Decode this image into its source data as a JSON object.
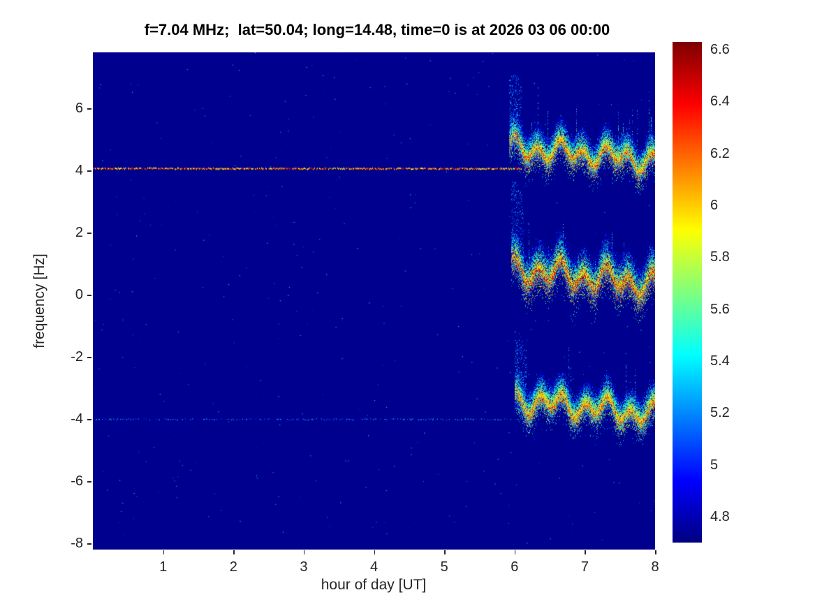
{
  "figure": {
    "title": "f=7.04 MHz;  lat=50.04; long=14.48, time=0 is at 2026 03 06 00:00"
  },
  "chart_data": {
    "type": "heatmap",
    "title": "f=7.04 MHz;  lat=50.04; long=14.48, time=0 is at 2026 03 06 00:00",
    "xlabel": "hour of day [UT]",
    "ylabel": "frequency [Hz]",
    "xlim": [
      0,
      8
    ],
    "ylim": [
      -8.2,
      7.8
    ],
    "xticks": [
      1,
      2,
      3,
      4,
      5,
      6,
      7,
      8
    ],
    "yticks": [
      -8,
      -6,
      -4,
      -2,
      0,
      2,
      4,
      6
    ],
    "grid": false,
    "colorbar": {
      "colormap": "jet",
      "position": "right",
      "min": 4.7,
      "max": 6.63,
      "ticks": [
        4.8,
        5,
        5.2,
        5.4,
        5.6,
        5.8,
        6,
        6.2,
        6.4,
        6.6
      ]
    },
    "background_value": 4.73,
    "speckle": {
      "density": 0.0009,
      "vmin": 4.78,
      "vmax": 5.45
    },
    "features": [
      {
        "kind": "hline",
        "y": 4.08,
        "x_start": 0,
        "x_end": 6.1,
        "value": 6.15,
        "value_jitter": 0.45,
        "gap_prob": 0.1,
        "thickness_px": 2
      },
      {
        "kind": "hline",
        "y": -4.0,
        "x_start": 0,
        "x_end": 6.05,
        "value": 5.15,
        "value_jitter": 0.35,
        "gap_prob": 0.45,
        "thickness_px": 1
      },
      {
        "kind": "noisy_band",
        "center": 4.7,
        "x_start": 5.92,
        "x_end": 8.0,
        "peak_value": 6.55,
        "core_sigma": 0.1,
        "mid_sigma": 0.3,
        "up_spread": 0.85,
        "down_spread": 0.4,
        "drift": -0.2,
        "wiggle_amp": 0.24,
        "wiggle_freq": 3.1,
        "wiggle_freq2": 1.4,
        "phase": 0.0
      },
      {
        "kind": "noisy_band",
        "center": 0.8,
        "x_start": 5.95,
        "x_end": 8.0,
        "peak_value": 6.6,
        "core_sigma": 0.14,
        "mid_sigma": 0.36,
        "up_spread": 1.05,
        "down_spread": 0.55,
        "drift": -0.25,
        "wiggle_amp": 0.28,
        "wiggle_freq": 3.1,
        "wiggle_freq2": 1.4,
        "phase": 0.4
      },
      {
        "kind": "noisy_band",
        "center": -3.4,
        "x_start": 6.0,
        "x_end": 8.0,
        "peak_value": 6.5,
        "core_sigma": 0.11,
        "mid_sigma": 0.3,
        "up_spread": 0.85,
        "down_spread": 0.5,
        "drift": -0.25,
        "wiggle_amp": 0.25,
        "wiggle_freq": 3.1,
        "wiggle_freq2": 1.4,
        "phase": 0.9
      }
    ]
  }
}
